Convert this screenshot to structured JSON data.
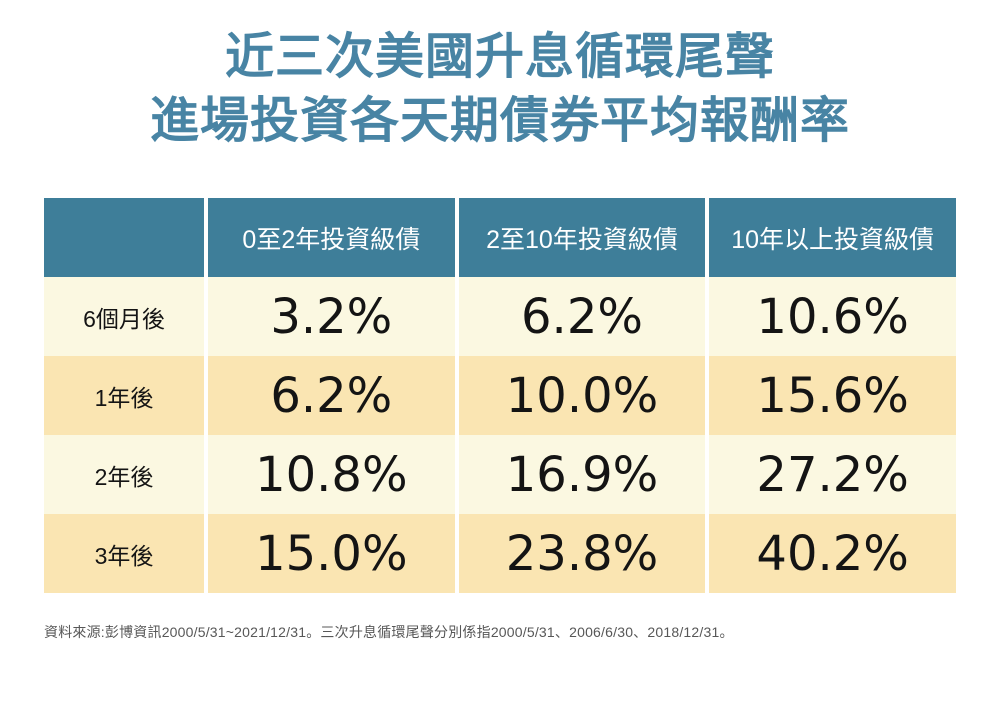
{
  "title": {
    "line1": "近三次美國升息循環尾聲",
    "line2": "進場投資各天期債券平均報酬率"
  },
  "table": {
    "corner": "",
    "columns": [
      "0至2年投資級債",
      "2至10年投資級債",
      "10年以上投資級債"
    ],
    "rows": [
      {
        "label": "6個月後",
        "values": [
          "3.2%",
          "6.2%",
          "10.6%"
        ]
      },
      {
        "label": "1年後",
        "values": [
          "6.2%",
          "10.0%",
          "15.6%"
        ]
      },
      {
        "label": "2年後",
        "values": [
          "10.8%",
          "16.9%",
          "27.2%"
        ]
      },
      {
        "label": "3年後",
        "values": [
          "15.0%",
          "23.8%",
          "40.2%"
        ]
      }
    ]
  },
  "source_note": "資料來源:彭博資訊2000/5/31~2021/12/31。三次升息循環尾聲分別係指2000/5/31、2006/6/30、2018/12/31。",
  "colors": {
    "title_text": "#4884A4",
    "header_background": "#3E7E99",
    "header_text": "#FFFFFF",
    "row_cream": "#FBF8E1",
    "row_amber": "#FAE5B2",
    "value_text": "#141414",
    "source_text": "#575757",
    "separator": "#FFFFFF"
  },
  "chart_data": {
    "type": "table",
    "title": "近三次美國升息循環尾聲 進場投資各天期債券平均報酬率",
    "categories": [
      "6個月後",
      "1年後",
      "2年後",
      "3年後"
    ],
    "series": [
      {
        "name": "0至2年投資級債",
        "values": [
          3.2,
          6.2,
          10.8,
          15.0
        ]
      },
      {
        "name": "2至10年投資級債",
        "values": [
          6.2,
          10.0,
          16.9,
          23.8
        ]
      },
      {
        "name": "10年以上投資級債",
        "values": [
          10.6,
          15.6,
          27.2,
          40.2
        ]
      }
    ],
    "unit": "%",
    "source": "彭博資訊 2000/5/31~2021/12/31",
    "notes": "三次升息循環尾聲分別係指2000/5/31、2006/6/30、2018/12/31"
  }
}
